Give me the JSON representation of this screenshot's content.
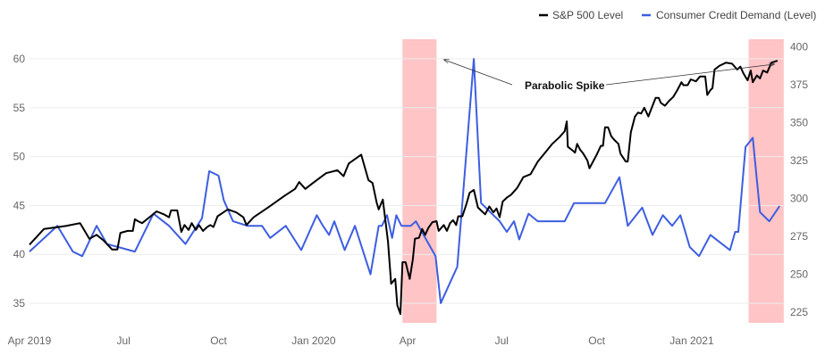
{
  "chart_data": {
    "type": "line",
    "title": "",
    "xlabel": "",
    "grid": "horizontal",
    "x_range": [
      "2019-04-01",
      "2021-04-01"
    ],
    "x_ticks": [
      {
        "date": "2019-04-01",
        "label": "Apr 2019"
      },
      {
        "date": "2019-07-01",
        "label": "Jul"
      },
      {
        "date": "2019-10-01",
        "label": "Oct"
      },
      {
        "date": "2020-01-01",
        "label": "Jan 2020"
      },
      {
        "date": "2020-04-01",
        "label": "Apr"
      },
      {
        "date": "2020-07-01",
        "label": "Jul"
      },
      {
        "date": "2020-10-01",
        "label": "Oct"
      },
      {
        "date": "2021-01-01",
        "label": "Jan 2021"
      }
    ],
    "y_left": {
      "ylim": [
        33,
        62
      ],
      "ticks": [
        35,
        40,
        45,
        50,
        55,
        60
      ]
    },
    "y_right": {
      "ylim": [
        218,
        405
      ],
      "ticks": [
        225,
        250,
        275,
        300,
        325,
        350,
        375,
        400
      ]
    },
    "legend": {
      "placement": "top-right"
    },
    "shaded_regions": [
      {
        "start": "2020-03-27",
        "end": "2020-04-29",
        "color": "#ffc4c6"
      },
      {
        "start": "2021-02-25",
        "end": "2021-03-31",
        "color": "#ffc4c6"
      }
    ],
    "annotation": {
      "text": "Parabolic Spike",
      "point_to": [
        {
          "date": "2020-04-05",
          "axis": "right",
          "value": 390
        },
        {
          "date": "2021-03-10",
          "axis": "left",
          "value": 59.5
        }
      ]
    },
    "series": [
      {
        "name": "S&P 500 Level",
        "axis": "left",
        "color": "#000000",
        "points": [
          [
            "2019-04-01",
            41.0
          ],
          [
            "2019-04-15",
            42.6
          ],
          [
            "2019-05-06",
            42.9
          ],
          [
            "2019-05-20",
            43.2
          ],
          [
            "2019-05-29",
            41.6
          ],
          [
            "2019-06-05",
            42.0
          ],
          [
            "2019-06-12",
            41.4
          ],
          [
            "2019-06-20",
            40.5
          ],
          [
            "2019-06-25",
            40.5
          ],
          [
            "2019-06-28",
            42.2
          ],
          [
            "2019-07-05",
            42.4
          ],
          [
            "2019-07-10",
            42.4
          ],
          [
            "2019-07-12",
            43.6
          ],
          [
            "2019-07-15",
            43.4
          ],
          [
            "2019-07-19",
            43.2
          ],
          [
            "2019-07-26",
            43.8
          ],
          [
            "2019-08-02",
            44.4
          ],
          [
            "2019-08-09",
            44.1
          ],
          [
            "2019-08-14",
            43.8
          ],
          [
            "2019-08-16",
            44.5
          ],
          [
            "2019-08-22",
            44.5
          ],
          [
            "2019-08-26",
            42.3
          ],
          [
            "2019-08-29",
            43.0
          ],
          [
            "2019-09-02",
            42.5
          ],
          [
            "2019-09-05",
            43.2
          ],
          [
            "2019-09-09",
            42.5
          ],
          [
            "2019-09-12",
            43.0
          ],
          [
            "2019-09-16",
            42.4
          ],
          [
            "2019-09-20",
            42.8
          ],
          [
            "2019-09-23",
            43.0
          ],
          [
            "2019-09-26",
            42.8
          ],
          [
            "2019-09-30",
            43.9
          ],
          [
            "2019-10-10",
            44.6
          ],
          [
            "2019-10-18",
            44.3
          ],
          [
            "2019-10-25",
            43.8
          ],
          [
            "2019-10-28",
            43.0
          ],
          [
            "2019-11-04",
            43.8
          ],
          [
            "2019-11-18",
            44.8
          ],
          [
            "2019-12-04",
            46.0
          ],
          [
            "2019-12-14",
            46.7
          ],
          [
            "2019-12-18",
            47.4
          ],
          [
            "2019-12-24",
            46.7
          ],
          [
            "2019-12-30",
            47.2
          ],
          [
            "2020-01-13",
            48.3
          ],
          [
            "2020-01-24",
            48.6
          ],
          [
            "2020-01-30",
            48.0
          ],
          [
            "2020-02-04",
            49.3
          ],
          [
            "2020-02-16",
            50.2
          ],
          [
            "2020-02-23",
            47.6
          ],
          [
            "2020-02-27",
            47.3
          ],
          [
            "2020-03-02",
            45.3
          ],
          [
            "2020-03-04",
            44.6
          ],
          [
            "2020-03-08",
            45.6
          ],
          [
            "2020-03-13",
            41.3
          ],
          [
            "2020-03-16",
            37.0
          ],
          [
            "2020-03-20",
            37.5
          ],
          [
            "2020-03-22",
            34.8
          ],
          [
            "2020-03-25",
            33.9
          ],
          [
            "2020-03-27",
            39.2
          ],
          [
            "2020-03-30",
            39.2
          ],
          [
            "2020-04-03",
            37.5
          ],
          [
            "2020-04-06",
            39.5
          ],
          [
            "2020-04-08",
            41.6
          ],
          [
            "2020-04-12",
            41.7
          ],
          [
            "2020-04-15",
            42.6
          ],
          [
            "2020-04-18",
            42.0
          ],
          [
            "2020-04-21",
            42.7
          ],
          [
            "2020-04-25",
            43.3
          ],
          [
            "2020-04-29",
            43.4
          ],
          [
            "2020-05-01",
            42.4
          ],
          [
            "2020-05-06",
            43.0
          ],
          [
            "2020-05-09",
            42.4
          ],
          [
            "2020-05-12",
            43.2
          ],
          [
            "2020-05-15",
            43.5
          ],
          [
            "2020-05-18",
            43.0
          ],
          [
            "2020-05-20",
            43.9
          ],
          [
            "2020-05-24",
            43.9
          ],
          [
            "2020-05-28",
            45.2
          ],
          [
            "2020-05-31",
            46.3
          ],
          [
            "2020-06-04",
            46.6
          ],
          [
            "2020-06-08",
            44.8
          ],
          [
            "2020-06-12",
            44.4
          ],
          [
            "2020-06-15",
            44.1
          ],
          [
            "2020-06-19",
            44.9
          ],
          [
            "2020-06-23",
            44.3
          ],
          [
            "2020-06-26",
            44.7
          ],
          [
            "2020-06-29",
            43.8
          ],
          [
            "2020-07-02",
            45.4
          ],
          [
            "2020-07-06",
            45.8
          ],
          [
            "2020-07-10",
            46.1
          ],
          [
            "2020-07-16",
            46.8
          ],
          [
            "2020-07-22",
            47.9
          ],
          [
            "2020-07-29",
            48.2
          ],
          [
            "2020-08-05",
            49.5
          ],
          [
            "2020-08-12",
            50.4
          ],
          [
            "2020-08-19",
            51.3
          ],
          [
            "2020-08-26",
            52.0
          ],
          [
            "2020-08-31",
            52.6
          ],
          [
            "2020-09-02",
            53.6
          ],
          [
            "2020-09-03",
            51.0
          ],
          [
            "2020-09-08",
            50.6
          ],
          [
            "2020-09-10",
            50.4
          ],
          [
            "2020-09-12",
            51.3
          ],
          [
            "2020-09-15",
            50.7
          ],
          [
            "2020-09-18",
            50.3
          ],
          [
            "2020-09-22",
            49.6
          ],
          [
            "2020-09-24",
            48.8
          ],
          [
            "2020-09-28",
            49.6
          ],
          [
            "2020-10-01",
            50.2
          ],
          [
            "2020-10-05",
            51.1
          ],
          [
            "2020-10-07",
            51.1
          ],
          [
            "2020-10-09",
            53.0
          ],
          [
            "2020-10-12",
            53.0
          ],
          [
            "2020-10-15",
            52.1
          ],
          [
            "2020-10-18",
            51.7
          ],
          [
            "2020-10-22",
            51.3
          ],
          [
            "2020-10-24",
            50.3
          ],
          [
            "2020-10-29",
            49.5
          ],
          [
            "2020-10-31",
            49.5
          ],
          [
            "2020-11-03",
            52.5
          ],
          [
            "2020-11-07",
            54.1
          ],
          [
            "2020-11-10",
            54.5
          ],
          [
            "2020-11-13",
            54.4
          ],
          [
            "2020-11-16",
            55.0
          ],
          [
            "2020-11-20",
            54.1
          ],
          [
            "2020-11-24",
            55.2
          ],
          [
            "2020-11-27",
            56.0
          ],
          [
            "2020-11-30",
            56.0
          ],
          [
            "2020-12-02",
            55.5
          ],
          [
            "2020-12-06",
            55.2
          ],
          [
            "2020-12-10",
            55.7
          ],
          [
            "2020-12-14",
            56.1
          ],
          [
            "2020-12-18",
            56.8
          ],
          [
            "2020-12-22",
            57.6
          ],
          [
            "2020-12-24",
            57.3
          ],
          [
            "2020-12-28",
            57.3
          ],
          [
            "2020-12-31",
            57.9
          ],
          [
            "2021-01-05",
            57.7
          ],
          [
            "2021-01-09",
            58.2
          ],
          [
            "2021-01-14",
            58.2
          ],
          [
            "2021-01-16",
            56.3
          ],
          [
            "2021-01-19",
            56.8
          ],
          [
            "2021-01-21",
            57.0
          ],
          [
            "2021-01-23",
            58.9
          ],
          [
            "2021-01-28",
            59.3
          ],
          [
            "2021-02-03",
            59.6
          ],
          [
            "2021-02-09",
            59.5
          ],
          [
            "2021-02-14",
            58.9
          ],
          [
            "2021-02-17",
            59.2
          ],
          [
            "2021-02-20",
            58.5
          ],
          [
            "2021-02-24",
            57.8
          ],
          [
            "2021-02-27",
            58.8
          ],
          [
            "2021-03-01",
            57.6
          ],
          [
            "2021-03-05",
            58.3
          ],
          [
            "2021-03-08",
            58.0
          ],
          [
            "2021-03-11",
            58.8
          ],
          [
            "2021-03-15",
            58.6
          ],
          [
            "2021-03-19",
            59.6
          ],
          [
            "2021-03-25",
            59.8
          ]
        ]
      },
      {
        "name": "Consumer Credit Demand (Level)",
        "axis": "right",
        "color": "#3d5ee0",
        "points": [
          [
            "2019-04-01",
            265
          ],
          [
            "2019-04-28",
            282
          ],
          [
            "2019-05-13",
            265
          ],
          [
            "2019-05-22",
            262
          ],
          [
            "2019-06-05",
            282
          ],
          [
            "2019-06-15",
            270
          ],
          [
            "2019-07-12",
            265
          ],
          [
            "2019-07-30",
            290
          ],
          [
            "2019-08-14",
            282
          ],
          [
            "2019-08-30",
            270
          ],
          [
            "2019-09-15",
            287
          ],
          [
            "2019-09-22",
            318
          ],
          [
            "2019-10-01",
            315
          ],
          [
            "2019-10-06",
            299
          ],
          [
            "2019-10-15",
            285
          ],
          [
            "2019-10-29",
            282
          ],
          [
            "2019-11-06",
            282
          ],
          [
            "2019-11-12",
            282
          ],
          [
            "2019-11-20",
            274
          ],
          [
            "2019-12-05",
            282
          ],
          [
            "2019-12-20",
            266
          ],
          [
            "2020-01-04",
            289
          ],
          [
            "2020-01-10",
            282
          ],
          [
            "2020-01-16",
            276
          ],
          [
            "2020-01-21",
            285
          ],
          [
            "2020-01-31",
            266
          ],
          [
            "2020-02-10",
            282
          ],
          [
            "2020-02-25",
            250
          ],
          [
            "2020-03-04",
            282
          ],
          [
            "2020-03-07",
            282
          ],
          [
            "2020-03-12",
            289
          ],
          [
            "2020-03-17",
            274
          ],
          [
            "2020-03-21",
            289
          ],
          [
            "2020-03-26",
            282
          ],
          [
            "2020-04-04",
            282
          ],
          [
            "2020-04-09",
            285
          ],
          [
            "2020-04-28",
            262
          ],
          [
            "2020-05-03",
            231
          ],
          [
            "2020-05-19",
            255
          ],
          [
            "2020-06-04",
            392
          ],
          [
            "2020-06-11",
            297
          ],
          [
            "2020-06-29",
            285
          ],
          [
            "2020-07-06",
            278
          ],
          [
            "2020-07-13",
            285
          ],
          [
            "2020-07-18",
            273
          ],
          [
            "2020-07-27",
            290
          ],
          [
            "2020-08-05",
            285
          ],
          [
            "2020-08-22",
            285
          ],
          [
            "2020-08-31",
            285
          ],
          [
            "2020-09-09",
            297
          ],
          [
            "2020-09-24",
            297
          ],
          [
            "2020-10-09",
            297
          ],
          [
            "2020-10-23",
            314
          ],
          [
            "2020-10-31",
            282
          ],
          [
            "2020-11-14",
            294
          ],
          [
            "2020-11-24",
            276
          ],
          [
            "2020-12-04",
            289
          ],
          [
            "2020-12-13",
            282
          ],
          [
            "2020-12-21",
            289
          ],
          [
            "2020-12-30",
            268
          ],
          [
            "2021-01-08",
            262
          ],
          [
            "2021-01-19",
            276
          ],
          [
            "2021-02-07",
            266
          ],
          [
            "2021-02-12",
            278
          ],
          [
            "2021-02-15",
            278
          ],
          [
            "2021-02-22",
            334
          ],
          [
            "2021-03-01",
            340
          ],
          [
            "2021-03-08",
            291
          ],
          [
            "2021-03-17",
            285
          ],
          [
            "2021-03-27",
            295
          ]
        ]
      }
    ]
  }
}
